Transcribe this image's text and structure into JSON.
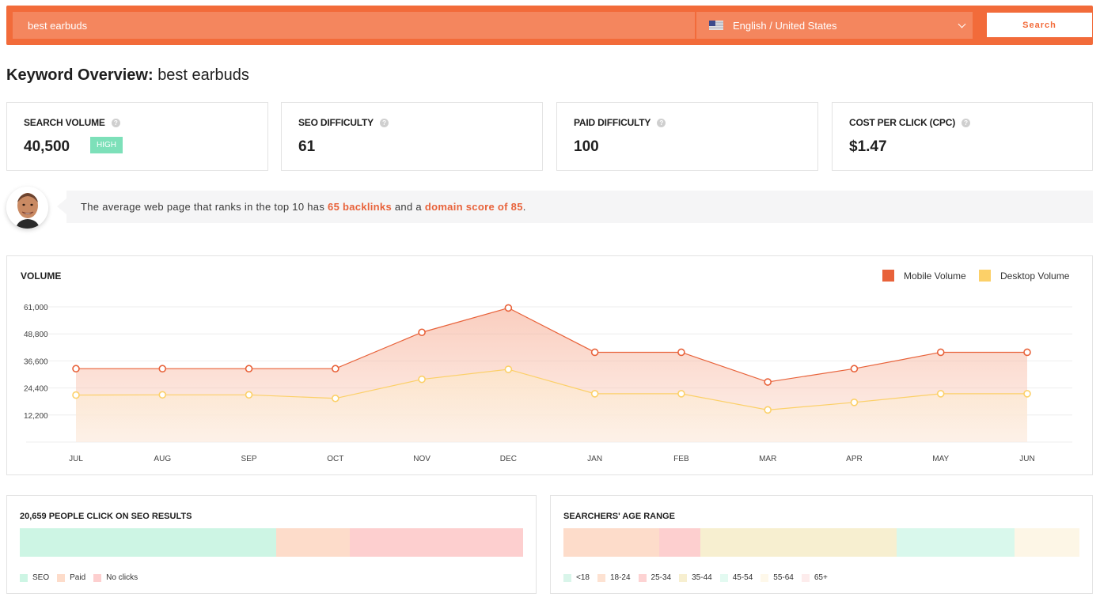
{
  "search": {
    "query": "best earbuds",
    "language": "English / United States",
    "button_label": "Search"
  },
  "title": {
    "prefix": "Keyword Overview:",
    "keyword": "best earbuds"
  },
  "metrics": [
    {
      "label": "SEARCH VOLUME",
      "value": "40,500",
      "badge": "HIGH"
    },
    {
      "label": "SEO DIFFICULTY",
      "value": "61"
    },
    {
      "label": "PAID DIFFICULTY",
      "value": "100"
    },
    {
      "label": "COST PER CLICK (CPC)",
      "value": "$1.47"
    }
  ],
  "tip": {
    "text_before": "The average web page that ranks in the top 10 has ",
    "backlinks": "65 backlinks",
    "text_mid": " and a ",
    "domain_score": "domain score of 85",
    "text_after": "."
  },
  "volume_panel": {
    "title": "VOLUME",
    "legend_mobile": "Mobile Volume",
    "legend_desktop": "Desktop Volume"
  },
  "colors": {
    "mobile": "#e8623a",
    "desktop": "#fcd068",
    "accent": "#f26b3a"
  },
  "chart_data": {
    "type": "area",
    "categories": [
      "JUL",
      "AUG",
      "SEP",
      "OCT",
      "NOV",
      "DEC",
      "JAN",
      "FEB",
      "MAR",
      "APR",
      "MAY",
      "JUN"
    ],
    "series": [
      {
        "name": "Mobile Volume",
        "values": [
          33100,
          33100,
          33100,
          33100,
          49500,
          60500,
          40500,
          40500,
          27100,
          33100,
          40500,
          40500
        ]
      },
      {
        "name": "Desktop Volume",
        "values": [
          21200,
          21300,
          21300,
          19700,
          28300,
          32800,
          21800,
          21800,
          14500,
          17900,
          21800,
          21800
        ]
      }
    ],
    "yticks": [
      "61,000",
      "48,800",
      "36,600",
      "24,400",
      "12,200"
    ],
    "ytick_values": [
      61000,
      48800,
      36600,
      24400,
      12200
    ],
    "ylim": [
      0,
      61000
    ],
    "grid": true,
    "legend_position": "top-right"
  },
  "clicks_panel": {
    "title": "20,659 PEOPLE CLICK ON SEO RESULTS",
    "segments": [
      {
        "name": "SEO",
        "share": 51,
        "color": "#cdf5e4"
      },
      {
        "name": "Paid",
        "share": 14.5,
        "color": "#fddcca"
      },
      {
        "name": "No clicks",
        "share": 34.5,
        "color": "#fdcfcf"
      }
    ]
  },
  "age_panel": {
    "title": "SEARCHERS' AGE RANGE",
    "segments": [
      {
        "name": "<18",
        "share": 18.5,
        "color": "#fddcca"
      },
      {
        "name": "18-24",
        "share": 8,
        "color": "#fdcfcf"
      },
      {
        "name": "25-34",
        "share": 0,
        "color": "#fdcfcf"
      },
      {
        "name": "35-44",
        "share": 38,
        "color": "#f7efd0"
      },
      {
        "name": "45-54",
        "share": 23,
        "color": "#d9f8ec"
      },
      {
        "name": "55-64",
        "share": 12.5,
        "color": "#fdf6e6"
      },
      {
        "name": "65+",
        "share": 0,
        "color": "#fde8e8"
      }
    ],
    "legend_colors": [
      "#d9f5ea",
      "#fde2d2",
      "#fdd3d3",
      "#f7efd0",
      "#e3faf1",
      "#fef8ea",
      "#fdecec"
    ]
  }
}
